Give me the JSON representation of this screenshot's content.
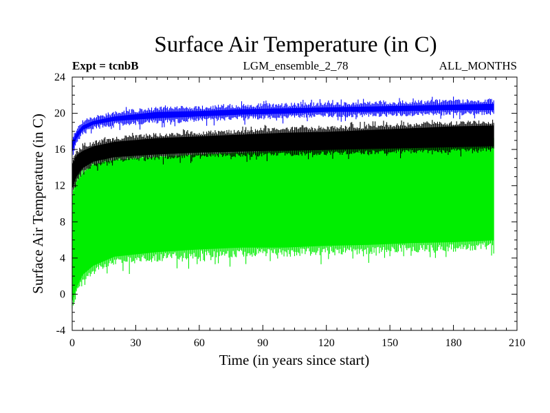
{
  "chart_data": {
    "type": "line",
    "title": "Surface Air Temperature (in C)",
    "subtitle_left": "Expt = tcnbB",
    "subtitle_center": "LGM_ensemble_2_78",
    "subtitle_right": "ALL_MONTHS",
    "xlabel": "Time (in years since start)",
    "ylabel": "Surface Air Temperature (in C)",
    "xlim": [
      0,
      210
    ],
    "ylim": [
      -4,
      24
    ],
    "xticks": [
      "0",
      "30",
      "60",
      "90",
      "120",
      "150",
      "180",
      "210"
    ],
    "yticks": [
      "-4",
      "0",
      "4",
      "8",
      "12",
      "16",
      "20",
      "24"
    ],
    "grid": false,
    "x_end": 199,
    "series": [
      {
        "name": "green",
        "color": "#00ee00",
        "note": "seasonal cycle band (monthly min / max)",
        "years": [
          0,
          2,
          5,
          10,
          20,
          40,
          60,
          80,
          100,
          120,
          140,
          160,
          180,
          199
        ],
        "low": [
          -1.0,
          0.5,
          2.0,
          3.0,
          4.0,
          4.5,
          4.8,
          5.0,
          5.0,
          5.2,
          5.3,
          5.5,
          5.6,
          5.8
        ],
        "high": [
          11.0,
          12.5,
          13.5,
          14.5,
          15.0,
          15.3,
          15.6,
          15.8,
          16.0,
          16.2,
          16.5,
          16.7,
          16.9,
          17.0
        ]
      },
      {
        "name": "black",
        "color": "#000000",
        "note": "band (monthly min / max)",
        "years": [
          0,
          2,
          5,
          10,
          20,
          40,
          60,
          80,
          100,
          120,
          140,
          160,
          180,
          199
        ],
        "low": [
          11.5,
          12.8,
          13.8,
          14.5,
          15.0,
          15.3,
          15.5,
          15.6,
          15.7,
          15.8,
          15.9,
          16.0,
          16.1,
          16.2
        ],
        "high": [
          14.5,
          15.5,
          16.0,
          16.5,
          17.0,
          17.4,
          17.6,
          17.8,
          18.0,
          18.1,
          18.3,
          18.5,
          18.7,
          18.8
        ]
      },
      {
        "name": "blue",
        "color": "#0000ff",
        "note": "band (monthly min / max)",
        "years": [
          0,
          2,
          5,
          10,
          20,
          40,
          60,
          80,
          100,
          120,
          140,
          160,
          180,
          199
        ],
        "low": [
          15.5,
          17.0,
          18.0,
          18.6,
          19.0,
          19.3,
          19.5,
          19.7,
          19.8,
          20.0,
          20.0,
          20.1,
          20.2,
          20.2
        ],
        "high": [
          17.0,
          18.0,
          18.8,
          19.3,
          19.8,
          20.3,
          20.4,
          20.6,
          20.7,
          20.8,
          20.9,
          21.0,
          21.1,
          21.2
        ]
      }
    ]
  }
}
